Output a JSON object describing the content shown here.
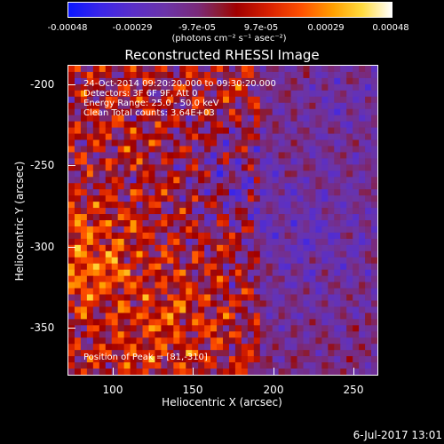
{
  "colorbar": {
    "ticks": [
      "-0.00048",
      "-0.00029",
      "-9.7e-05",
      "9.7e-05",
      "0.00029",
      "0.00048"
    ],
    "units": "(photons cm⁻² s⁻¹ asec⁻²)"
  },
  "title": "Reconstructed RHESSI Image",
  "info": {
    "time_range": "24-Oct-2014 09:20:20.000 to 09:30:20.000",
    "detectors": "Detectors: 3F 6F 9F, Att 0",
    "energy": "Energy Range: 25.0 - 50.0 keV",
    "method": "Clean    Total counts: 3.64E+03",
    "peak": "Position of Peak = [81,-310]"
  },
  "chart_data": {
    "type": "heatmap",
    "title": "Reconstructed RHESSI Image",
    "xlabel": "Heliocentric X (arcsec)",
    "ylabel": "Heliocentric Y (arcsec)",
    "xlim": [
      70,
      265
    ],
    "ylim": [
      -385,
      -190
    ],
    "x_ticks": [
      "100",
      "150",
      "200",
      "250"
    ],
    "y_ticks": [
      "-200",
      "-250",
      "-300",
      "-350"
    ],
    "colorbar_range": [
      -0.00048,
      0.00048
    ],
    "grid": false,
    "peak_position": [
      81,
      -310
    ]
  },
  "footer": {
    "date": "6-Jul-2017 13:01"
  }
}
